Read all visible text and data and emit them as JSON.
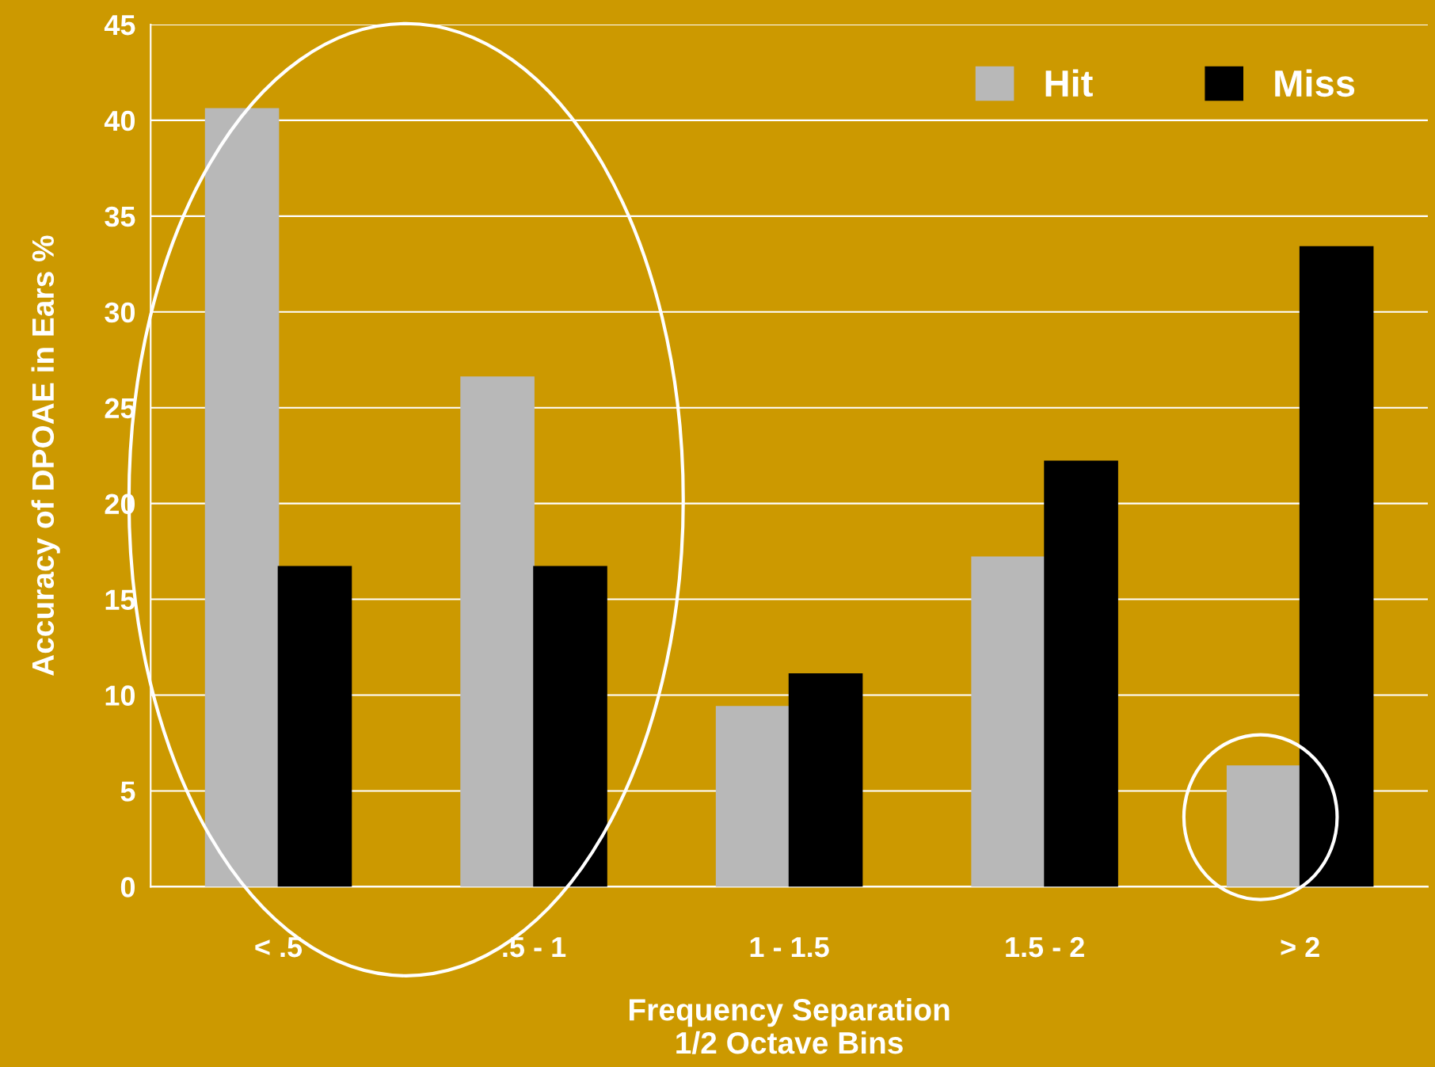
{
  "chart_data": {
    "type": "bar",
    "xlabel": "Frequency Separation\n1/2 Octave Bins",
    "ylabel": "Accuracy of DPOAE in Ears %",
    "categories": [
      "< .5",
      ".5 - 1",
      "1 - 1.5",
      "1.5 - 2",
      "> 2"
    ],
    "series": [
      {
        "name": "Hit",
        "color": "#b8b8b8",
        "values": [
          40.6,
          26.6,
          9.4,
          17.2,
          6.3
        ]
      },
      {
        "name": "Miss",
        "color": "#000000",
        "values": [
          16.7,
          16.7,
          11.1,
          22.2,
          33.4
        ]
      }
    ],
    "ylim": [
      0,
      45
    ],
    "yticks": [
      0,
      5,
      10,
      15,
      20,
      25,
      30,
      35,
      40,
      45
    ],
    "grid": "y",
    "legend": "top right"
  }
}
